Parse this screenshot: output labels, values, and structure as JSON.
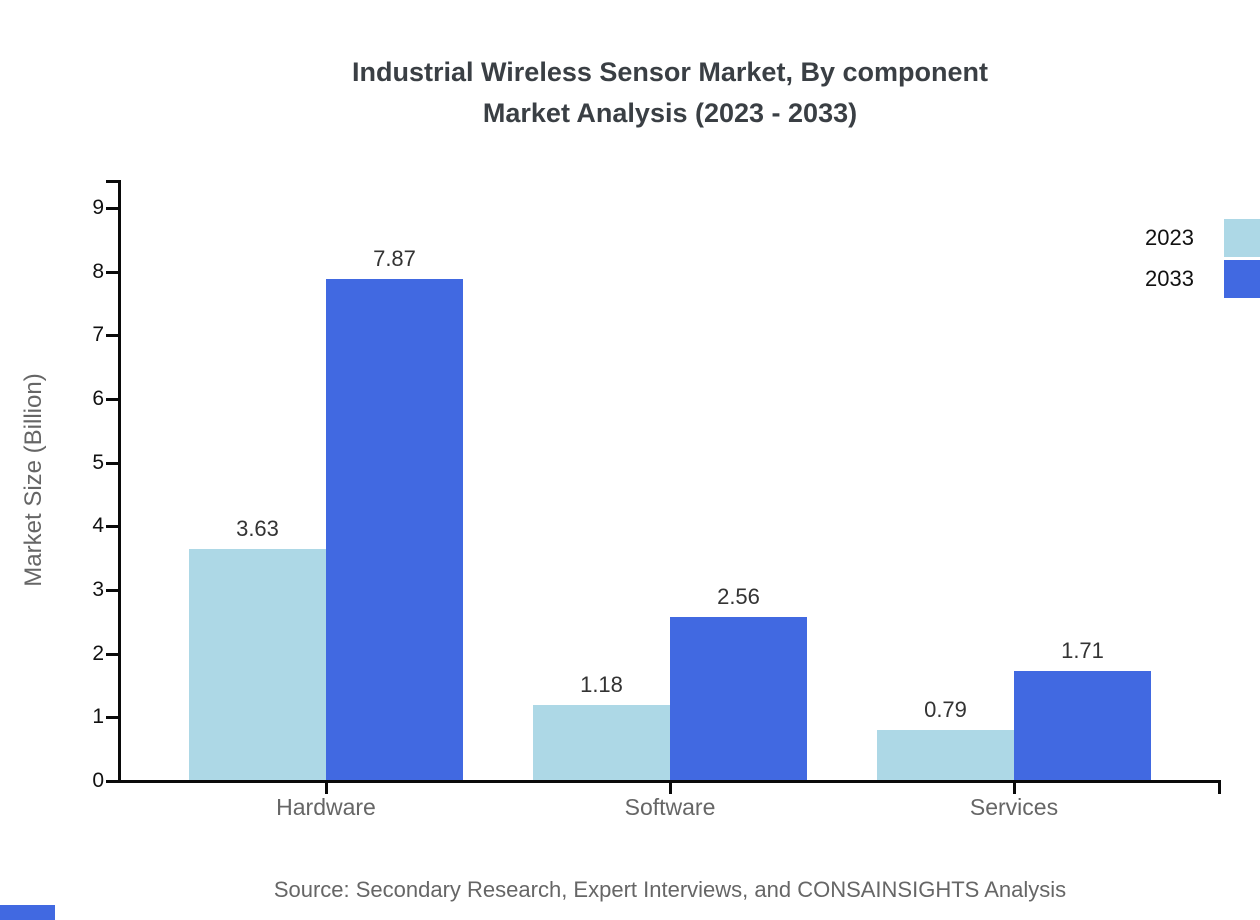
{
  "title": {
    "line1": "Industrial Wireless Sensor Market, By component",
    "line2": "Market Analysis (2023 - 2033)"
  },
  "source_note": "Source: Secondary Research, Expert Interviews, and CONSAINSIGHTS Analysis",
  "colors": {
    "series_2023": "#ADD8E6",
    "series_2033": "#4169E1",
    "title_text": "#3a3f44",
    "axis": "#0a0a0a",
    "muted_text": "#666666"
  },
  "chart_data": {
    "type": "bar",
    "title": "Industrial Wireless Sensor Market, By component Market Analysis (2023 - 2033)",
    "categories": [
      "Hardware",
      "Software",
      "Services"
    ],
    "series": [
      {
        "name": "2023",
        "color": "#ADD8E6",
        "values": [
          3.63,
          1.18,
          0.79
        ]
      },
      {
        "name": "2033",
        "color": "#4169E1",
        "values": [
          7.87,
          2.56,
          1.71
        ]
      }
    ],
    "xlabel": "",
    "ylabel": "Market Size (Billion)",
    "ylim": [
      0,
      9
    ],
    "yticks": [
      0,
      1,
      2,
      3,
      4,
      5,
      6,
      7,
      8,
      9
    ],
    "grid": false,
    "legend_position": "top-right",
    "value_labels": true
  }
}
